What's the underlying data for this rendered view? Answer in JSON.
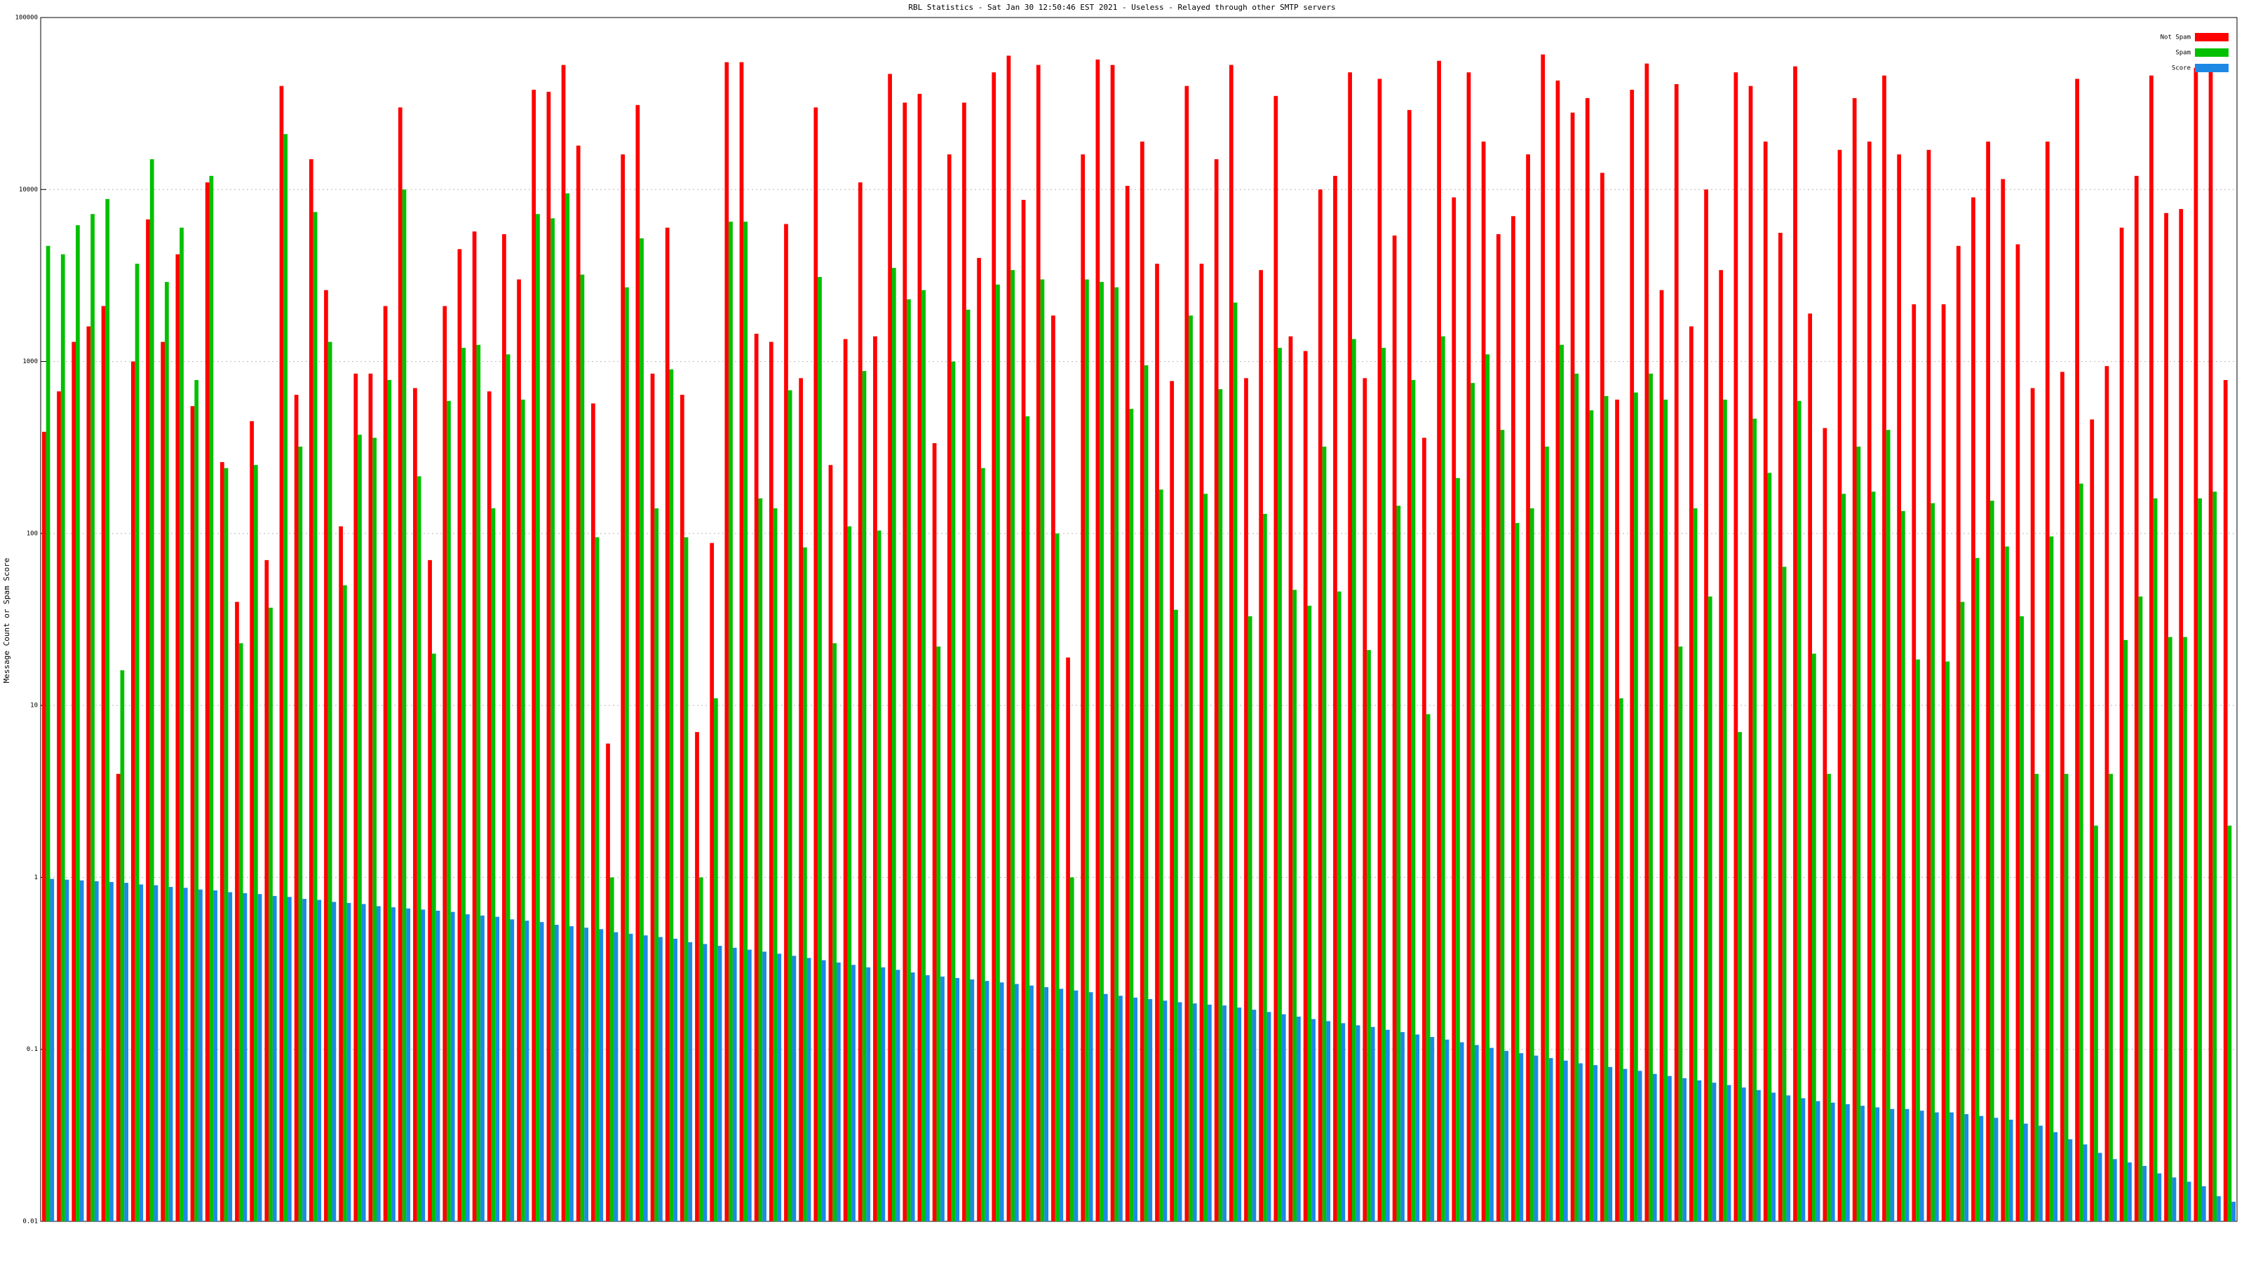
{
  "chart_data": {
    "type": "bar",
    "title": "RBL Statistics - Sat Jan 30 12:50:46 EST 2021 - Useless - Relayed through other SMTP servers",
    "y_label": "Message Count or Spam Score",
    "ylog": true,
    "grid": true,
    "legend": "upper right",
    "ylim": [
      0.01,
      100000
    ],
    "yticks": [
      0.01,
      0.1,
      1,
      10,
      100,
      1000,
      10000,
      100000
    ],
    "categories": [
      null,
      null,
      null,
      null,
      null,
      null,
      null,
      null,
      null,
      null,
      null,
      null,
      null,
      null,
      null,
      null,
      null,
      null,
      null,
      null,
      null,
      null,
      null,
      null,
      null,
      null,
      null,
      null,
      null,
      null,
      null,
      null,
      null,
      null,
      null,
      null,
      null,
      null,
      null,
      null,
      null,
      null,
      null,
      null,
      null,
      null,
      null,
      null,
      null,
      null,
      null,
      null,
      null,
      null,
      null,
      null,
      null,
      null,
      null,
      null,
      null,
      null,
      null,
      null,
      null,
      null,
      null,
      null,
      null,
      null,
      null,
      null,
      null,
      null,
      null,
      null,
      null,
      null,
      null,
      null,
      null,
      null,
      null,
      null,
      null,
      null,
      null,
      null,
      null,
      null,
      null,
      null,
      null,
      null,
      null,
      null,
      null,
      null,
      null,
      null,
      null,
      null,
      null,
      null,
      null,
      null,
      null,
      null,
      null,
      null,
      null,
      null,
      null,
      null,
      null,
      null,
      null,
      null,
      null,
      null,
      null,
      null,
      null,
      null,
      null,
      null,
      null,
      null,
      null,
      null,
      null,
      null,
      null,
      null,
      null,
      null,
      null,
      null,
      null,
      null,
      null,
      null,
      null,
      null,
      null,
      null,
      null,
      null
    ],
    "series": [
      {
        "name": "Not Spam",
        "color": "#ff0000",
        "values": [
          390,
          670,
          1300,
          1600,
          2100,
          4,
          1000,
          6700,
          1300,
          4200,
          550,
          11000,
          260,
          40,
          450,
          70,
          40000,
          640,
          15000,
          2600,
          110,
          850,
          850,
          2100,
          30000,
          700,
          70,
          2100,
          4500,
          5700,
          670,
          5500,
          3000,
          38000,
          37000,
          53000,
          18000,
          570,
          6,
          16000,
          31000,
          850,
          6000,
          640,
          7,
          88,
          55000,
          55000,
          1450,
          1300,
          6300,
          800,
          30000,
          250,
          1350,
          11000,
          1400,
          47000,
          32000,
          36000,
          335,
          16000,
          32000,
          4000,
          48000,
          60000,
          8700,
          53000,
          1850,
          19,
          16000,
          57000,
          53000,
          10500,
          19000,
          3700,
          770,
          40000,
          3700,
          15000,
          53000,
          800,
          3400,
          35000,
          1400,
          1150,
          10000,
          12000,
          48000,
          800,
          44000,
          5400,
          29000,
          360,
          56000,
          9000,
          48000,
          19000,
          5500,
          7000,
          16000,
          61000,
          43000,
          28000,
          34000,
          12500,
          600,
          38000,
          54000,
          2600,
          41000,
          1600,
          10000,
          3400,
          48000,
          40000,
          19000,
          5600,
          52000,
          1900,
          410,
          17000,
          34000,
          19000,
          46000,
          16000,
          2150,
          17000,
          2150,
          4700,
          9000,
          19000,
          11500,
          4800,
          700,
          19000,
          870,
          44000,
          460,
          940,
          6000,
          12000,
          46000,
          7300,
          7700,
          51000,
          51000,
          780
        ]
      },
      {
        "name": "Spam",
        "color": "#00c000",
        "values": [
          4700,
          4200,
          6200,
          7200,
          8800,
          16,
          3700,
          15000,
          2900,
          6000,
          780,
          12000,
          240,
          23,
          250,
          37,
          21000,
          320,
          7400,
          1300,
          50,
          375,
          360,
          780,
          10000,
          215,
          20,
          590,
          1200,
          1250,
          140,
          1100,
          600,
          7200,
          6800,
          9500,
          3200,
          95,
          1,
          2700,
          5200,
          140,
          900,
          95,
          1,
          11,
          6500,
          6500,
          160,
          140,
          680,
          83,
          3100,
          23,
          110,
          880,
          104,
          3500,
          2300,
          2600,
          22,
          1000,
          2000,
          240,
          2800,
          3400,
          480,
          3000,
          100,
          1,
          3000,
          2900,
          2700,
          530,
          950,
          180,
          36,
          1850,
          170,
          690,
          2200,
          33,
          130,
          1200,
          47,
          38,
          320,
          46,
          1350,
          21,
          1200,
          145,
          780,
          8.9,
          1400,
          210,
          750,
          1100,
          400,
          115,
          140,
          320,
          1250,
          850,
          520,
          630,
          11,
          660,
          850,
          600,
          22,
          140,
          43,
          600,
          7,
          465,
          225,
          64,
          590,
          20,
          4,
          170,
          320,
          175,
          400,
          135,
          18.5,
          150,
          18,
          40,
          72,
          155,
          84,
          33,
          4,
          96,
          4,
          195,
          2,
          4,
          24,
          43,
          160,
          25,
          25,
          160,
          175,
          2
        ]
      },
      {
        "name": "Score",
        "color": "#1e88e5",
        "values": [
          0.98,
          0.97,
          0.96,
          0.95,
          0.94,
          0.93,
          0.91,
          0.9,
          0.88,
          0.87,
          0.85,
          0.84,
          0.82,
          0.81,
          0.8,
          0.78,
          0.77,
          0.75,
          0.74,
          0.72,
          0.71,
          0.7,
          0.68,
          0.67,
          0.66,
          0.65,
          0.64,
          0.63,
          0.61,
          0.6,
          0.59,
          0.57,
          0.56,
          0.55,
          0.53,
          0.52,
          0.51,
          0.5,
          0.48,
          0.47,
          0.46,
          0.45,
          0.44,
          0.42,
          0.41,
          0.4,
          0.39,
          0.38,
          0.37,
          0.36,
          0.35,
          0.34,
          0.33,
          0.32,
          0.31,
          0.3,
          0.3,
          0.29,
          0.28,
          0.27,
          0.265,
          0.26,
          0.255,
          0.25,
          0.245,
          0.24,
          0.235,
          0.23,
          0.225,
          0.22,
          0.215,
          0.21,
          0.205,
          0.2,
          0.196,
          0.192,
          0.188,
          0.185,
          0.182,
          0.18,
          0.175,
          0.17,
          0.165,
          0.16,
          0.155,
          0.15,
          0.146,
          0.142,
          0.138,
          0.135,
          0.13,
          0.126,
          0.122,
          0.118,
          0.114,
          0.11,
          0.106,
          0.102,
          0.098,
          0.095,
          0.092,
          0.089,
          0.086,
          0.083,
          0.081,
          0.079,
          0.077,
          0.075,
          0.072,
          0.07,
          0.068,
          0.066,
          0.064,
          0.062,
          0.06,
          0.058,
          0.056,
          0.054,
          0.052,
          0.05,
          0.049,
          0.048,
          0.047,
          0.046,
          0.045,
          0.045,
          0.044,
          0.043,
          0.043,
          0.042,
          0.041,
          0.04,
          0.039,
          0.037,
          0.036,
          0.033,
          0.03,
          0.028,
          0.025,
          0.023,
          0.022,
          0.021,
          0.019,
          0.018,
          0.017,
          0.016,
          0.014,
          0.013
        ]
      }
    ]
  }
}
